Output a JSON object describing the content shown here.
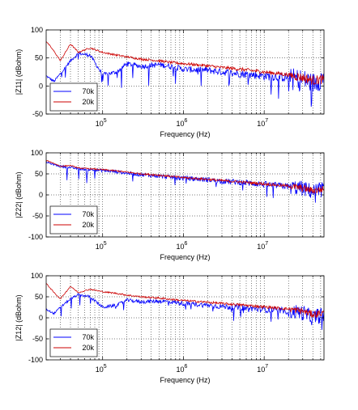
{
  "chart_data": [
    {
      "type": "line",
      "ylabel": "|Z11| (dBohm)",
      "xlabel": "Frequency (Hz)",
      "xscale": "log",
      "xlim": [
        20000,
        55000000
      ],
      "ylim": [
        -50,
        100
      ],
      "yticks": [
        -50,
        0,
        50,
        100
      ],
      "xtick_labels": [
        {
          "base": "10",
          "exp": "5"
        },
        {
          "base": "10",
          "exp": "6"
        },
        {
          "base": "10",
          "exp": "7"
        }
      ],
      "grid": true,
      "legend_position": "bottom-left",
      "series": [
        {
          "name": "70k",
          "color": "#0000ff",
          "x": [
            20000,
            25000,
            30000,
            40000,
            50000,
            70000,
            100000,
            150000,
            200000,
            300000,
            500000,
            700000,
            1000000,
            2000000,
            3000000,
            5000000,
            10000000,
            20000000,
            30000000,
            40000000,
            55000000
          ],
          "y": [
            18,
            8,
            22,
            45,
            58,
            55,
            20,
            25,
            40,
            35,
            38,
            35,
            30,
            28,
            25,
            22,
            18,
            15,
            12,
            5,
            15
          ]
        },
        {
          "name": "20k",
          "color": "#cc0000",
          "x": [
            20000,
            25000,
            30000,
            40000,
            50000,
            70000,
            100000,
            150000,
            200000,
            300000,
            500000,
            700000,
            1000000,
            2000000,
            3000000,
            5000000,
            10000000,
            20000000,
            30000000,
            40000000,
            55000000
          ],
          "y": [
            80,
            62,
            45,
            75,
            60,
            68,
            60,
            55,
            52,
            48,
            45,
            42,
            40,
            36,
            33,
            30,
            25,
            20,
            15,
            10,
            12
          ]
        }
      ]
    },
    {
      "type": "line",
      "ylabel": "|Z22| (dBohm)",
      "xlabel": "Frequency (Hz)",
      "xscale": "log",
      "xlim": [
        20000,
        55000000
      ],
      "ylim": [
        -100,
        100
      ],
      "yticks": [
        -100,
        -50,
        0,
        50,
        100
      ],
      "xtick_labels": [
        {
          "base": "10",
          "exp": "5"
        },
        {
          "base": "10",
          "exp": "6"
        },
        {
          "base": "10",
          "exp": "7"
        }
      ],
      "grid": true,
      "legend_position": "bottom-left",
      "series": [
        {
          "name": "70k",
          "color": "#0000ff",
          "x": [
            20000,
            25000,
            30000,
            40000,
            50000,
            70000,
            100000,
            150000,
            200000,
            300000,
            500000,
            700000,
            1000000,
            2000000,
            3000000,
            5000000,
            10000000,
            20000000,
            30000000,
            40000000,
            55000000
          ],
          "y": [
            78,
            72,
            68,
            65,
            62,
            60,
            58,
            55,
            52,
            48,
            45,
            42,
            40,
            36,
            33,
            30,
            25,
            20,
            15,
            8,
            15
          ]
        },
        {
          "name": "20k",
          "color": "#cc0000",
          "x": [
            20000,
            25000,
            30000,
            40000,
            50000,
            70000,
            100000,
            150000,
            200000,
            300000,
            500000,
            700000,
            1000000,
            2000000,
            3000000,
            5000000,
            10000000,
            20000000,
            30000000,
            40000000,
            55000000
          ],
          "y": [
            82,
            75,
            68,
            70,
            64,
            62,
            60,
            57,
            54,
            50,
            47,
            44,
            41,
            37,
            34,
            31,
            26,
            21,
            16,
            10,
            14
          ]
        }
      ]
    },
    {
      "type": "line",
      "ylabel": "|Z12| (dBohm)",
      "xlabel": "Frequency (Hz)",
      "xscale": "log",
      "xlim": [
        20000,
        55000000
      ],
      "ylim": [
        -100,
        100
      ],
      "yticks": [
        -100,
        -50,
        0,
        50,
        100
      ],
      "xtick_labels": [
        {
          "base": "10",
          "exp": "5"
        },
        {
          "base": "10",
          "exp": "6"
        },
        {
          "base": "10",
          "exp": "7"
        }
      ],
      "grid": true,
      "legend_position": "bottom-left",
      "series": [
        {
          "name": "70k",
          "color": "#0000ff",
          "x": [
            20000,
            25000,
            30000,
            40000,
            50000,
            70000,
            100000,
            150000,
            200000,
            300000,
            500000,
            700000,
            1000000,
            2000000,
            3000000,
            5000000,
            10000000,
            20000000,
            30000000,
            40000000,
            55000000
          ],
          "y": [
            20,
            10,
            25,
            45,
            55,
            50,
            25,
            30,
            42,
            38,
            40,
            38,
            34,
            30,
            27,
            24,
            20,
            16,
            12,
            0,
            10
          ]
        },
        {
          "name": "20k",
          "color": "#cc0000",
          "x": [
            20000,
            25000,
            30000,
            40000,
            50000,
            70000,
            100000,
            150000,
            200000,
            300000,
            500000,
            700000,
            1000000,
            2000000,
            3000000,
            5000000,
            10000000,
            20000000,
            30000000,
            40000000,
            55000000
          ],
          "y": [
            82,
            60,
            45,
            75,
            60,
            68,
            62,
            58,
            54,
            50,
            47,
            44,
            41,
            37,
            34,
            31,
            26,
            21,
            16,
            8,
            12
          ]
        }
      ]
    }
  ]
}
